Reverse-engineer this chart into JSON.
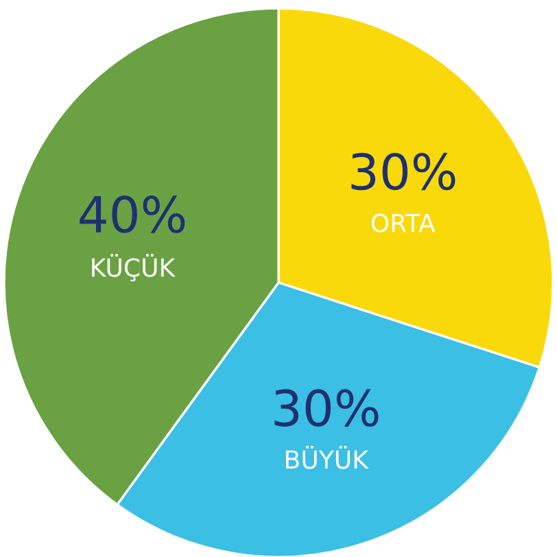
{
  "chart_data": {
    "type": "pie",
    "categories": [
      "ORTA",
      "BÜYÜK",
      "KÜÇÜK"
    ],
    "values": [
      30,
      30,
      40
    ],
    "value_labels": [
      "30%",
      "30%",
      "40%"
    ],
    "colors": [
      "#f9d90a",
      "#3bbfe4",
      "#6aa243"
    ]
  }
}
